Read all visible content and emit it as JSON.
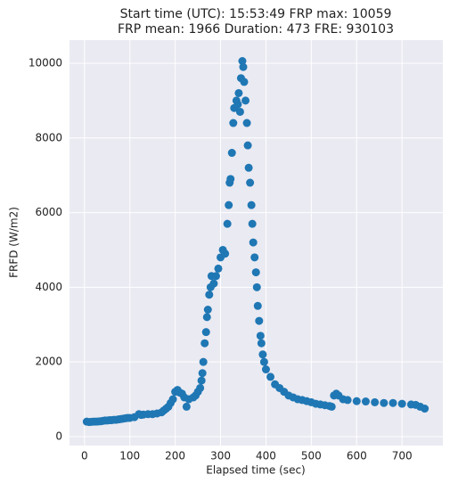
{
  "chart_data": {
    "type": "scatter",
    "title": [
      "Start time (UTC): 15:53:49 FRP max: 10059",
      "FRP mean: 1966 Duration: 473 FRE: 930103"
    ],
    "xlabel": "Elapsed time (sec)",
    "ylabel": "FRFD (W/m2)",
    "color": "#1f77b4",
    "grid": true,
    "xlim": [
      -33,
      790
    ],
    "ylim": [
      -240,
      10620
    ],
    "xticks": [
      0,
      100,
      200,
      300,
      400,
      500,
      600,
      700
    ],
    "yticks": [
      0,
      2000,
      4000,
      6000,
      8000,
      10000
    ],
    "x": [
      5,
      10,
      15,
      20,
      25,
      30,
      35,
      40,
      45,
      50,
      55,
      60,
      65,
      70,
      75,
      80,
      85,
      90,
      95,
      100,
      110,
      120,
      125,
      130,
      140,
      150,
      160,
      170,
      175,
      180,
      185,
      190,
      195,
      200,
      205,
      210,
      215,
      220,
      225,
      230,
      240,
      245,
      250,
      255,
      258,
      260,
      262,
      265,
      268,
      270,
      272,
      275,
      278,
      280,
      285,
      290,
      295,
      300,
      305,
      310,
      315,
      318,
      320,
      322,
      325,
      328,
      330,
      335,
      338,
      340,
      343,
      345,
      348,
      350,
      352,
      355,
      358,
      360,
      362,
      365,
      368,
      370,
      372,
      375,
      378,
      380,
      382,
      385,
      388,
      390,
      393,
      396,
      400,
      410,
      420,
      430,
      440,
      450,
      460,
      470,
      480,
      490,
      500,
      510,
      520,
      530,
      540,
      545,
      550,
      555,
      560,
      570,
      580,
      600,
      620,
      640,
      660,
      680,
      700,
      720,
      730,
      740,
      750
    ],
    "values": [
      400,
      390,
      395,
      400,
      400,
      405,
      410,
      420,
      430,
      430,
      440,
      440,
      450,
      450,
      460,
      470,
      480,
      490,
      500,
      500,
      520,
      600,
      580,
      590,
      600,
      600,
      620,
      650,
      700,
      750,
      800,
      900,
      1000,
      1200,
      1250,
      1180,
      1150,
      1050,
      800,
      1000,
      1050,
      1100,
      1200,
      1300,
      1500,
      1700,
      2000,
      2500,
      2800,
      3200,
      3400,
      3800,
      4000,
      4300,
      4100,
      4300,
      4500,
      4800,
      5000,
      4900,
      5700,
      6200,
      6800,
      6900,
      7600,
      8400,
      8800,
      9000,
      8900,
      9200,
      8700,
      9600,
      10059,
      9900,
      9500,
      9000,
      8400,
      7800,
      7200,
      6800,
      6200,
      5700,
      5200,
      4800,
      4400,
      4000,
      3500,
      3100,
      2700,
      2500,
      2200,
      2000,
      1800,
      1600,
      1400,
      1300,
      1200,
      1100,
      1050,
      1000,
      980,
      950,
      920,
      880,
      860,
      840,
      820,
      800,
      1100,
      1150,
      1100,
      1000,
      980,
      950,
      940,
      920,
      900,
      900,
      880,
      860,
      850,
      800,
      750
    ]
  }
}
